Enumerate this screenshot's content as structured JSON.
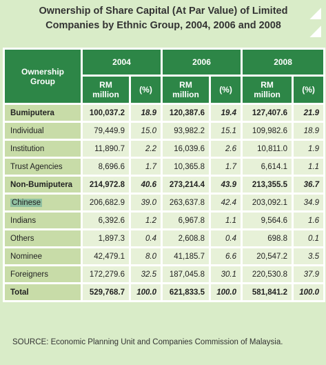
{
  "title": {
    "line1": "Ownership of Share Capital (At Par Value) of Limited",
    "line2": "Companies by Ethnic Group, 2004, 2006 and 2008"
  },
  "table": {
    "header": {
      "ownership": "Ownership Group",
      "years": [
        "2004",
        "2006",
        "2008"
      ],
      "rm": "RM million",
      "pct": "(%)"
    },
    "rows": [
      {
        "label": "Bumiputera",
        "bold": true,
        "v": [
          "100,037.2",
          "18.9",
          "120,387.6",
          "19.4",
          "127,407.6",
          "21.9"
        ]
      },
      {
        "label": "Individual",
        "v": [
          "79,449.9",
          "15.0",
          "93,982.2",
          "15.1",
          "109,982.6",
          "18.9"
        ]
      },
      {
        "label": "Institution",
        "v": [
          "11,890.7",
          "2.2",
          "16,039.6",
          "2.6",
          "10,811.0",
          "1.9"
        ]
      },
      {
        "label": "Trust Agencies",
        "v": [
          "8,696.6",
          "1.7",
          "10,365.8",
          "1.7",
          "6,614.1",
          "1.1"
        ]
      },
      {
        "label": "Non-Bumiputera",
        "bold": true,
        "v": [
          "214,972.8",
          "40.6",
          "273,214.4",
          "43.9",
          "213,355.5",
          "36.7"
        ]
      },
      {
        "label": "Chinese",
        "v": [
          "206,682.9",
          "39.0",
          "263,637.8",
          "42.4",
          "203,092.1",
          "34.9"
        ]
      },
      {
        "label": "Indians",
        "v": [
          "6,392.6",
          "1.2",
          "6,967.8",
          "1.1",
          "9,564.6",
          "1.6"
        ]
      },
      {
        "label": "Others",
        "v": [
          "1,897.3",
          "0.4",
          "2,608.8",
          "0.4",
          "698.8",
          "0.1"
        ]
      },
      {
        "label": "Nominee",
        "v": [
          "42,479.1",
          "8.0",
          "41,185.7",
          "6.6",
          "20,547.2",
          "3.5"
        ]
      },
      {
        "label": "Foreigners",
        "v": [
          "172,279.6",
          "32.5",
          "187,045.8",
          "30.1",
          "220,530.8",
          "37.9"
        ]
      },
      {
        "label": "Total",
        "bold": true,
        "v": [
          "529,768.7",
          "100.0",
          "621,833.5",
          "100.0",
          "581,841.2",
          "100.0"
        ]
      }
    ]
  },
  "source": "SOURCE: Economic Planning Unit and Companies Commission of Malaysia."
}
